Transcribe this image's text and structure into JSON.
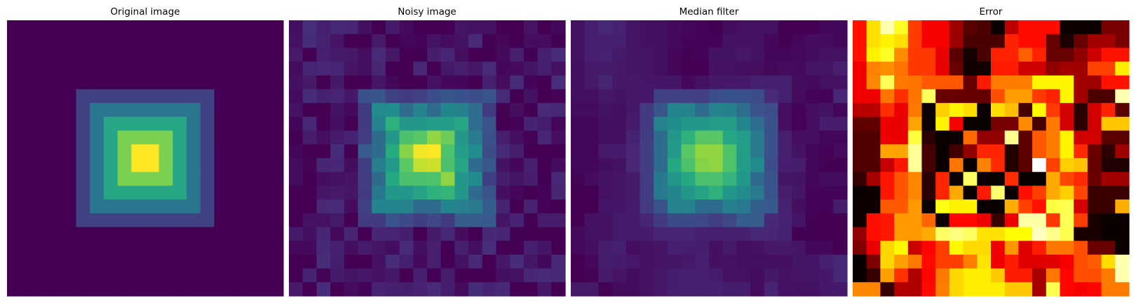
{
  "chart_data": [
    {
      "type": "heatmap",
      "title": "Original image",
      "colormap": "viridis",
      "grid": false,
      "rows": 20,
      "cols": 20,
      "value_range": [
        0,
        5
      ],
      "pattern": "concentric squares",
      "layers": [
        {
          "value": 0,
          "extent": "rows 0-19, cols 0-19"
        },
        {
          "value": 1,
          "extent": "rows 5-14, cols 5-14"
        },
        {
          "value": 2,
          "extent": "rows 6-13, cols 6-13"
        },
        {
          "value": 3,
          "extent": "rows 7-12, cols 7-12"
        },
        {
          "value": 4,
          "extent": "rows 8-11, cols 8-11"
        },
        {
          "value": 5,
          "extent": "rows 9-10, cols 9-10"
        }
      ]
    },
    {
      "type": "heatmap",
      "title": "Noisy image",
      "colormap": "viridis",
      "grid": false,
      "rows": 20,
      "cols": 20,
      "value_range": [
        0,
        5
      ],
      "description_of_values": "original image plus small random noise"
    },
    {
      "type": "heatmap",
      "title": "Median filter",
      "colormap": "viridis",
      "grid": false,
      "rows": 20,
      "cols": 20,
      "value_range": [
        0,
        5
      ],
      "description_of_values": "3x3 median of the noisy image"
    },
    {
      "type": "heatmap",
      "title": "Error",
      "colormap": "hot",
      "grid": false,
      "rows": 20,
      "cols": 20,
      "value_range": [
        0,
        1
      ],
      "description_of_values": "absolute difference between median filter and original; brightest along the square diagonals"
    }
  ]
}
